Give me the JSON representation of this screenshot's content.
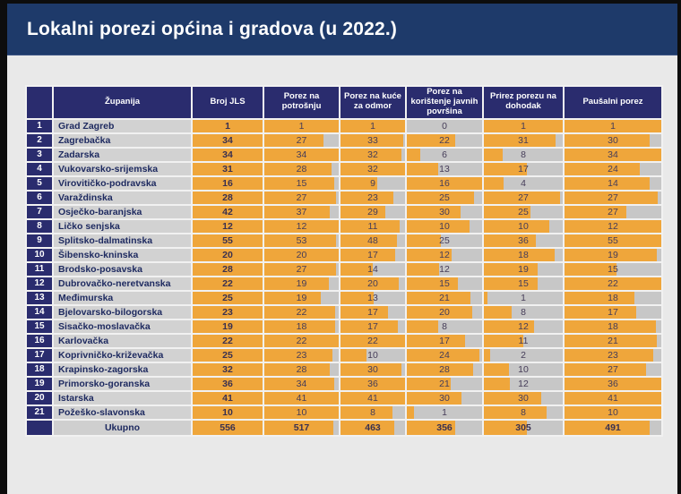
{
  "title": "Lokalni porezi općina i gradova (u 2022.)",
  "colors": {
    "accent_orange": "#efa63b",
    "header_navy": "#2a2c6e",
    "title_navy": "#1e3a6a",
    "cell_gray": "#c7c7c7",
    "page_bg": "#e9e9e9",
    "frame_black": "#0d0d0d"
  },
  "chart_data": {
    "type": "table",
    "title": "Lokalni porezi općina i gradova (u 2022.)",
    "bar_semantics": "orange in-cell bar width = cell value divided by the row's Broj JLS (share of local units levying the tax); Broj JLS column always full",
    "corner_header": "",
    "columns": [
      "Županija",
      "Broj JLS",
      "Porez na potrošnju",
      "Porez na kuće za odmor",
      "Porez na korištenje javnih površina",
      "Prirez porezu na dohodak",
      "Paušalni porez"
    ],
    "rows": [
      {
        "num": "1",
        "county": "Grad Zagreb",
        "values": [
          1,
          1,
          1,
          0,
          1,
          1
        ]
      },
      {
        "num": "2",
        "county": "Zagrebačka",
        "values": [
          34,
          27,
          33,
          22,
          31,
          30
        ]
      },
      {
        "num": "3",
        "county": "Zadarska",
        "values": [
          34,
          34,
          32,
          6,
          8,
          34
        ]
      },
      {
        "num": "4",
        "county": "Vukovarsko-srijemska",
        "values": [
          31,
          28,
          32,
          13,
          17,
          24
        ]
      },
      {
        "num": "5",
        "county": "Virovitičko-podravska",
        "values": [
          16,
          15,
          9,
          16,
          4,
          14
        ]
      },
      {
        "num": "6",
        "county": "Varaždinska",
        "values": [
          28,
          27,
          23,
          25,
          27,
          27
        ]
      },
      {
        "num": "7",
        "county": "Osječko-baranjska",
        "values": [
          42,
          37,
          29,
          30,
          25,
          27
        ]
      },
      {
        "num": "8",
        "county": "Ličko senjska",
        "values": [
          12,
          12,
          11,
          10,
          10,
          12
        ]
      },
      {
        "num": "9",
        "county": "Splitsko-dalmatinska",
        "values": [
          55,
          53,
          48,
          25,
          36,
          55
        ]
      },
      {
        "num": "10",
        "county": "Šibensko-kninska",
        "values": [
          20,
          20,
          17,
          12,
          18,
          19
        ]
      },
      {
        "num": "11",
        "county": "Brodsko-posavska",
        "values": [
          28,
          27,
          14,
          12,
          19,
          15
        ]
      },
      {
        "num": "12",
        "county": "Dubrovačko-neretvanska",
        "values": [
          22,
          19,
          20,
          15,
          15,
          22
        ]
      },
      {
        "num": "13",
        "county": "Međimurska",
        "values": [
          25,
          19,
          13,
          21,
          1,
          18
        ]
      },
      {
        "num": "14",
        "county": "Bjelovarsko-bilogorska",
        "values": [
          23,
          22,
          17,
          20,
          8,
          17
        ]
      },
      {
        "num": "15",
        "county": "Sisačko-moslavačka",
        "values": [
          19,
          18,
          17,
          8,
          12,
          18
        ]
      },
      {
        "num": "16",
        "county": "Karlovačka",
        "values": [
          22,
          22,
          22,
          17,
          11,
          21
        ]
      },
      {
        "num": "17",
        "county": "Koprivničko-križevačka",
        "values": [
          25,
          23,
          10,
          24,
          2,
          23
        ]
      },
      {
        "num": "18",
        "county": "Krapinsko-zagorska",
        "values": [
          32,
          28,
          30,
          28,
          10,
          27
        ]
      },
      {
        "num": "19",
        "county": "Primorsko-goranska",
        "values": [
          36,
          34,
          36,
          21,
          12,
          36
        ]
      },
      {
        "num": "20",
        "county": "Istarska",
        "values": [
          41,
          41,
          41,
          30,
          30,
          41
        ]
      },
      {
        "num": "21",
        "county": "Požeško-slavonska",
        "values": [
          10,
          10,
          8,
          1,
          8,
          10
        ]
      }
    ],
    "total": {
      "label": "Ukupno",
      "values": [
        556,
        517,
        463,
        356,
        305,
        491
      ]
    }
  }
}
